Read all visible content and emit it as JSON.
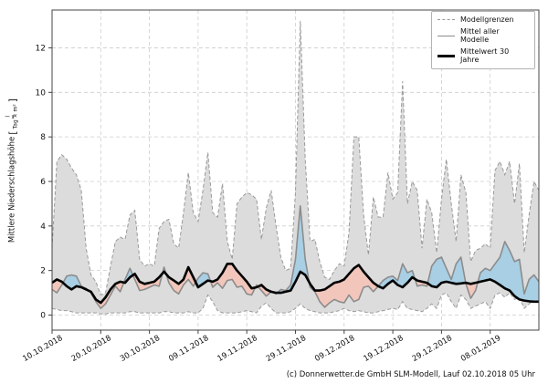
{
  "figure": {
    "footer": "(c) Donnerwetter.de GmbH SLM-Modell, Lauf 02.10.2018 05 Uhr"
  },
  "legend": {
    "items": [
      {
        "label": "Modellgrenzen",
        "style": "dashed-gray"
      },
      {
        "label": "Mittel aller Modelle",
        "style": "solid-gray"
      },
      {
        "label": "Mittelwert 30 Jahre",
        "style": "solid-black-thick"
      }
    ]
  },
  "axes": {
    "y_label_prefix": "Mittlere Niederschlagshöhe",
    "y_unit_open": "[",
    "y_unit_numerator": "l",
    "y_unit_denominator": "Tag × m²",
    "y_unit_close": "]"
  },
  "chart_data": {
    "type": "area",
    "title": "",
    "ylabel": "Mittlere Niederschlagshöhe [l/(Tag × m²)]",
    "xlabel": "",
    "x_unit": "days since 10.10.2018, 1 point per day",
    "ylim": [
      -0.7,
      13.7
    ],
    "y_ticks": [
      0,
      2,
      4,
      6,
      8,
      10,
      12
    ],
    "x_tick_days": [
      0,
      10,
      20,
      30,
      40,
      50,
      60,
      70,
      80,
      90
    ],
    "x_tick_labels": [
      "10.10.2018",
      "20.10.2018",
      "30.10.2018",
      "09.11.2018",
      "19.11.2018",
      "29.11.2018",
      "09.12.2018",
      "19.12.2018",
      "29.12.2018",
      "08.01.2019"
    ],
    "grid": true,
    "legend_position": "upper right",
    "series": [
      {
        "name": "Modellgrenzen oberes Limit",
        "values": [
          3.0,
          6.9,
          7.2,
          7.0,
          6.6,
          6.3,
          5.6,
          3.0,
          1.8,
          1.5,
          0.9,
          1.0,
          2.2,
          3.3,
          3.5,
          3.4,
          4.5,
          4.7,
          2.5,
          2.2,
          2.3,
          2.2,
          3.9,
          4.2,
          4.3,
          3.2,
          3.0,
          4.6,
          6.4,
          4.6,
          4.2,
          5.6,
          7.3,
          4.6,
          4.4,
          5.9,
          3.3,
          2.5,
          5.0,
          5.3,
          5.5,
          5.4,
          5.2,
          3.4,
          4.8,
          5.6,
          4.0,
          2.6,
          2.0,
          2.1,
          5.5,
          13.2,
          7.0,
          3.3,
          3.4,
          2.4,
          1.7,
          1.6,
          2.0,
          2.3,
          2.2,
          3.7,
          8.0,
          8.0,
          4.5,
          2.7,
          5.3,
          4.4,
          4.4,
          6.4,
          5.2,
          5.5,
          10.5,
          5.0,
          6.0,
          5.6,
          3.0,
          5.2,
          4.6,
          2.8,
          5.2,
          7.0,
          5.0,
          3.3,
          6.3,
          5.5,
          2.4,
          2.9,
          3.0,
          3.2,
          3.0,
          6.5,
          6.9,
          6.3,
          6.9,
          5.0,
          6.8,
          2.8,
          4.5,
          6.0,
          5.6
        ]
      },
      {
        "name": "Modellgrenzen unteres Limit",
        "values": [
          0.3,
          0.25,
          0.2,
          0.2,
          0.15,
          0.1,
          0.1,
          0.1,
          0.1,
          0.1,
          0.05,
          0.05,
          0.1,
          0.1,
          0.1,
          0.1,
          0.15,
          0.15,
          0.1,
          0.1,
          0.1,
          0.1,
          0.1,
          0.15,
          0.15,
          0.1,
          0.1,
          0.1,
          0.15,
          0.1,
          0.1,
          0.3,
          0.9,
          0.6,
          0.2,
          0.1,
          0.1,
          0.1,
          0.1,
          0.15,
          0.2,
          0.15,
          0.1,
          0.4,
          0.55,
          0.3,
          0.1,
          0.1,
          0.1,
          0.15,
          0.3,
          0.5,
          0.3,
          0.2,
          0.15,
          0.1,
          0.1,
          0.1,
          0.15,
          0.2,
          0.3,
          0.2,
          0.15,
          0.2,
          0.15,
          0.1,
          0.1,
          0.15,
          0.2,
          0.25,
          0.3,
          0.25,
          0.6,
          0.3,
          0.25,
          0.2,
          0.15,
          0.3,
          0.5,
          0.3,
          0.9,
          1.0,
          0.6,
          0.3,
          0.9,
          0.7,
          0.3,
          0.4,
          0.5,
          0.6,
          0.3,
          0.9,
          1.0,
          0.8,
          1.0,
          0.7,
          0.8,
          0.3,
          0.5,
          0.7,
          0.6
        ]
      },
      {
        "name": "Mittel aller Modelle",
        "values": [
          1.15,
          1.0,
          1.35,
          1.75,
          1.8,
          1.75,
          1.3,
          1.2,
          1.0,
          0.6,
          0.3,
          0.5,
          0.9,
          1.3,
          1.05,
          1.6,
          2.1,
          1.6,
          1.1,
          1.15,
          1.25,
          1.35,
          1.3,
          2.15,
          1.45,
          1.1,
          0.95,
          1.35,
          1.6,
          1.3,
          1.65,
          1.9,
          1.85,
          1.25,
          1.45,
          1.2,
          1.55,
          1.6,
          1.25,
          1.3,
          0.95,
          0.9,
          1.35,
          1.1,
          0.85,
          1.05,
          0.95,
          1.15,
          1.1,
          1.35,
          2.5,
          4.9,
          2.5,
          1.25,
          1.05,
          0.6,
          0.35,
          0.55,
          0.7,
          0.6,
          0.55,
          0.9,
          0.6,
          0.7,
          1.25,
          1.3,
          1.05,
          1.3,
          1.55,
          1.7,
          1.75,
          1.55,
          2.3,
          1.9,
          2.0,
          1.3,
          1.35,
          1.3,
          2.2,
          2.5,
          2.6,
          2.1,
          1.6,
          2.3,
          2.6,
          1.4,
          0.75,
          1.1,
          1.9,
          2.1,
          2.0,
          2.3,
          2.6,
          3.3,
          2.9,
          2.4,
          2.5,
          0.95,
          1.6,
          1.8,
          1.5
        ]
      },
      {
        "name": "Mittelwert 30 Jahre",
        "values": [
          1.45,
          1.6,
          1.5,
          1.3,
          1.15,
          1.3,
          1.25,
          1.15,
          1.05,
          0.7,
          0.55,
          0.8,
          1.15,
          1.4,
          1.5,
          1.45,
          1.7,
          1.85,
          1.5,
          1.4,
          1.45,
          1.5,
          1.7,
          1.95,
          1.7,
          1.55,
          1.4,
          1.6,
          2.15,
          1.7,
          1.25,
          1.4,
          1.55,
          1.5,
          1.6,
          1.9,
          2.3,
          2.3,
          2.0,
          1.75,
          1.5,
          1.2,
          1.25,
          1.35,
          1.15,
          1.05,
          1.0,
          1.0,
          1.05,
          1.1,
          1.5,
          1.95,
          1.8,
          1.4,
          1.1,
          1.1,
          1.15,
          1.3,
          1.45,
          1.5,
          1.6,
          1.85,
          2.1,
          2.25,
          1.95,
          1.7,
          1.45,
          1.3,
          1.2,
          1.4,
          1.55,
          1.35,
          1.25,
          1.45,
          1.7,
          1.55,
          1.5,
          1.45,
          1.3,
          1.25,
          1.45,
          1.5,
          1.45,
          1.4,
          1.42,
          1.45,
          1.4,
          1.45,
          1.5,
          1.55,
          1.6,
          1.5,
          1.35,
          1.2,
          1.1,
          0.85,
          0.7,
          0.65,
          0.62,
          0.6,
          0.6
        ]
      }
    ],
    "colors": {
      "envelope_fill": "#dcdcdc",
      "envelope_edge": "#999999",
      "above_fill": "#a8cfe4",
      "below_fill": "#f2c6bb",
      "model_mean_line": "#8c8c8c",
      "clim_mean_line": "#000000",
      "grid": "#cccccc",
      "spine": "#444444"
    }
  }
}
